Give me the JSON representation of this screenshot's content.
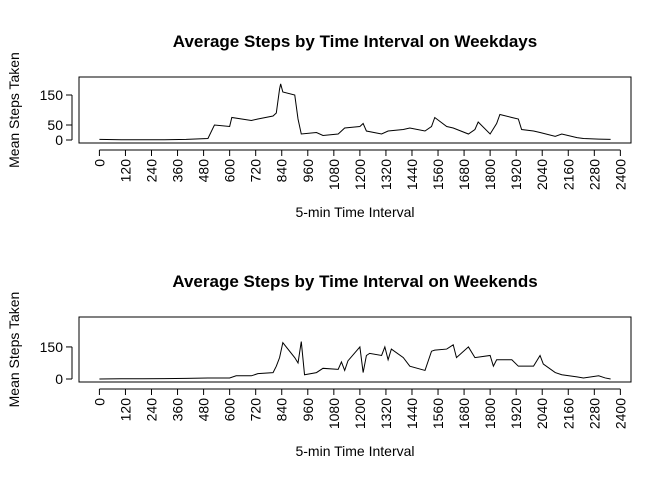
{
  "chart_data": [
    {
      "type": "line",
      "title": "Average Steps by Time Interval on Weekdays",
      "xlabel": "5-min Time Interval",
      "ylabel": "Mean Steps Taken",
      "x": [
        0,
        100,
        200,
        300,
        400,
        500,
        530,
        600,
        610,
        700,
        730,
        800,
        815,
        830,
        835,
        845,
        900,
        915,
        930,
        1000,
        1030,
        1100,
        1130,
        1200,
        1215,
        1230,
        1300,
        1330,
        1400,
        1430,
        1500,
        1530,
        1545,
        1600,
        1630,
        1700,
        1730,
        1745,
        1800,
        1830,
        1845,
        1900,
        1930,
        1945,
        2000,
        2030,
        2100,
        2130,
        2200,
        2230,
        2300,
        2355
      ],
      "color": "#000000",
      "values": [
        2,
        1,
        1,
        1,
        2,
        5,
        50,
        45,
        75,
        65,
        70,
        80,
        90,
        170,
        187,
        160,
        150,
        70,
        20,
        25,
        15,
        20,
        40,
        45,
        55,
        30,
        20,
        30,
        35,
        40,
        30,
        45,
        75,
        45,
        40,
        20,
        35,
        60,
        20,
        55,
        85,
        75,
        70,
        35,
        30,
        25,
        12,
        20,
        8,
        5,
        3,
        2
      ],
      "xlim": [
        -94,
        2449
      ],
      "ylim": [
        -10,
        210
      ],
      "xticks": [
        0,
        120,
        240,
        360,
        480,
        600,
        720,
        840,
        960,
        1080,
        1200,
        1320,
        1440,
        1560,
        1680,
        1800,
        1920,
        2040,
        2160,
        2280,
        2400
      ],
      "yticks": [
        0,
        50,
        150
      ]
    },
    {
      "type": "line",
      "title": "Average Steps by Time Interval on Weekends",
      "xlabel": "5-min Time Interval",
      "ylabel": "Mean Steps Taken",
      "x": [
        0,
        100,
        200,
        300,
        400,
        500,
        600,
        630,
        700,
        730,
        800,
        815,
        830,
        845,
        900,
        915,
        930,
        945,
        1000,
        1030,
        1100,
        1115,
        1130,
        1145,
        1200,
        1215,
        1230,
        1245,
        1300,
        1315,
        1330,
        1345,
        1400,
        1430,
        1500,
        1530,
        1545,
        1600,
        1630,
        1645,
        1700,
        1730,
        1800,
        1815,
        1830,
        1900,
        1930,
        2000,
        2030,
        2045,
        2100,
        2130,
        2200,
        2230,
        2300,
        2330,
        2355
      ],
      "color": "#000000",
      "values": [
        0,
        1,
        1,
        2,
        3,
        5,
        5,
        15,
        15,
        25,
        30,
        60,
        100,
        170,
        100,
        75,
        175,
        20,
        30,
        50,
        45,
        80,
        40,
        85,
        150,
        30,
        110,
        120,
        110,
        150,
        90,
        140,
        100,
        60,
        40,
        130,
        135,
        140,
        160,
        100,
        150,
        100,
        110,
        60,
        90,
        90,
        60,
        60,
        110,
        70,
        30,
        20,
        10,
        5,
        15,
        5,
        0
      ],
      "xlim": [
        -94,
        2449
      ],
      "ylim": [
        -14,
        290
      ],
      "xticks": [
        0,
        120,
        240,
        360,
        480,
        600,
        720,
        840,
        960,
        1080,
        1200,
        1320,
        1440,
        1560,
        1680,
        1800,
        1920,
        2040,
        2160,
        2280,
        2400
      ],
      "yticks": [
        0,
        150
      ]
    }
  ]
}
